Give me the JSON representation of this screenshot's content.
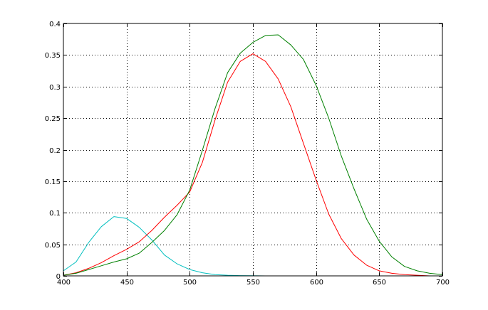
{
  "chart_data": {
    "type": "line",
    "title": "",
    "xlabel": "",
    "ylabel": "",
    "xlim": [
      400,
      700
    ],
    "ylim": [
      0,
      0.4
    ],
    "grid": true,
    "x_ticks": [
      400,
      450,
      500,
      550,
      600,
      650,
      700
    ],
    "x_tick_labels": [
      "400",
      "450",
      "500",
      "550",
      "600",
      "650",
      "700"
    ],
    "y_ticks": [
      0,
      0.05,
      0.1,
      0.15,
      0.2,
      0.25,
      0.3,
      0.35,
      0.4
    ],
    "y_tick_labels": [
      "0",
      "0.05",
      "0.1",
      "0.15",
      "0.2",
      "0.25",
      "0.3",
      "0.35",
      "0.4"
    ],
    "series": [
      {
        "color": "#00bfbf",
        "x": [
          400,
          410,
          420,
          430,
          440,
          450,
          460,
          470,
          480,
          490,
          500,
          510,
          520,
          530,
          540,
          550,
          560,
          570,
          580,
          590,
          600,
          650,
          700
        ],
        "y": [
          0.008,
          0.022,
          0.053,
          0.078,
          0.094,
          0.091,
          0.077,
          0.057,
          0.033,
          0.019,
          0.01,
          0.005,
          0.002,
          0.001,
          0.0005,
          0.0002,
          0,
          0,
          0,
          0,
          0,
          0,
          0
        ]
      },
      {
        "color": "#ff0000",
        "x": [
          400,
          410,
          420,
          430,
          440,
          450,
          460,
          470,
          480,
          490,
          500,
          510,
          520,
          530,
          540,
          550,
          560,
          570,
          580,
          590,
          600,
          610,
          620,
          630,
          640,
          650,
          660,
          670,
          680,
          690,
          700
        ],
        "y": [
          0.001,
          0.005,
          0.012,
          0.021,
          0.032,
          0.042,
          0.054,
          0.072,
          0.093,
          0.112,
          0.133,
          0.18,
          0.247,
          0.307,
          0.34,
          0.352,
          0.34,
          0.312,
          0.268,
          0.21,
          0.152,
          0.098,
          0.059,
          0.033,
          0.017,
          0.008,
          0.004,
          0.002,
          0.001,
          0,
          0
        ]
      },
      {
        "color": "#008000",
        "x": [
          400,
          410,
          420,
          430,
          440,
          450,
          460,
          470,
          480,
          490,
          500,
          510,
          520,
          530,
          540,
          550,
          560,
          570,
          580,
          590,
          600,
          610,
          620,
          630,
          640,
          650,
          660,
          670,
          680,
          690,
          700
        ],
        "y": [
          0.001,
          0.004,
          0.01,
          0.016,
          0.022,
          0.027,
          0.036,
          0.053,
          0.072,
          0.097,
          0.136,
          0.199,
          0.265,
          0.322,
          0.353,
          0.37,
          0.381,
          0.382,
          0.366,
          0.343,
          0.302,
          0.25,
          0.19,
          0.138,
          0.09,
          0.055,
          0.03,
          0.015,
          0.008,
          0.004,
          0.002
        ]
      }
    ]
  }
}
